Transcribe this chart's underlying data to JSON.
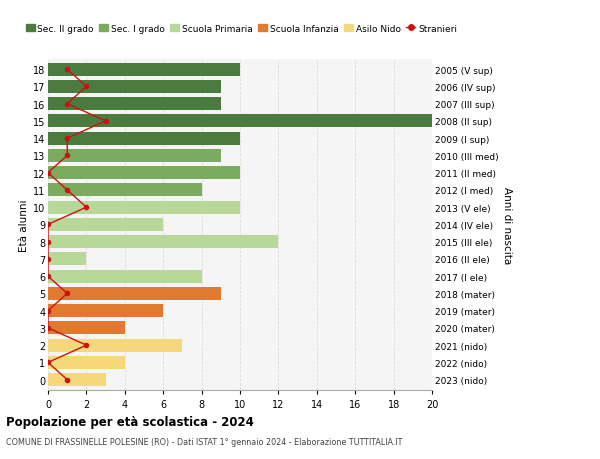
{
  "ages": [
    18,
    17,
    16,
    15,
    14,
    13,
    12,
    11,
    10,
    9,
    8,
    7,
    6,
    5,
    4,
    3,
    2,
    1,
    0
  ],
  "right_labels": [
    "2005 (V sup)",
    "2006 (IV sup)",
    "2007 (III sup)",
    "2008 (II sup)",
    "2009 (I sup)",
    "2010 (III med)",
    "2011 (II med)",
    "2012 (I med)",
    "2013 (V ele)",
    "2014 (IV ele)",
    "2015 (III ele)",
    "2016 (II ele)",
    "2017 (I ele)",
    "2018 (mater)",
    "2019 (mater)",
    "2020 (mater)",
    "2021 (nido)",
    "2022 (nido)",
    "2023 (nido)"
  ],
  "bar_values": [
    10,
    9,
    9,
    20,
    10,
    9,
    10,
    8,
    10,
    6,
    12,
    2,
    8,
    9,
    6,
    4,
    7,
    4,
    3
  ],
  "bar_colors": [
    "#4a7c3f",
    "#4a7c3f",
    "#4a7c3f",
    "#4a7c3f",
    "#4a7c3f",
    "#7aab5e",
    "#7aab5e",
    "#7aab5e",
    "#b8d89a",
    "#b8d89a",
    "#b8d89a",
    "#b8d89a",
    "#b8d89a",
    "#e07a30",
    "#e07a30",
    "#e07a30",
    "#f5d87a",
    "#f5d87a",
    "#f5d87a"
  ],
  "stranieri_values": [
    1,
    2,
    1,
    3,
    1,
    1,
    0,
    1,
    2,
    0,
    0,
    0,
    0,
    1,
    0,
    0,
    2,
    0,
    1
  ],
  "stranieri_color": "#cc1111",
  "title": "Popolazione per età scolastica - 2024",
  "subtitle": "COMUNE DI FRASSINELLE POLESINE (RO) - Dati ISTAT 1° gennaio 2024 - Elaborazione TUTTITALIA.IT",
  "ylabel_left": "Età alunni",
  "ylabel_right": "Anni di nascita",
  "xlim": [
    0,
    20
  ],
  "xticks": [
    0,
    2,
    4,
    6,
    8,
    10,
    12,
    14,
    16,
    18,
    20
  ],
  "legend_labels": [
    "Sec. II grado",
    "Sec. I grado",
    "Scuola Primaria",
    "Scuola Infanzia",
    "Asilo Nido",
    "Stranieri"
  ],
  "legend_colors": [
    "#4a7c3f",
    "#7aab5e",
    "#b8d89a",
    "#e07a30",
    "#f5d87a",
    "#cc1111"
  ],
  "bg_color": "#f5f5f5",
  "bar_height": 0.75,
  "grid_color": "#dddddd"
}
